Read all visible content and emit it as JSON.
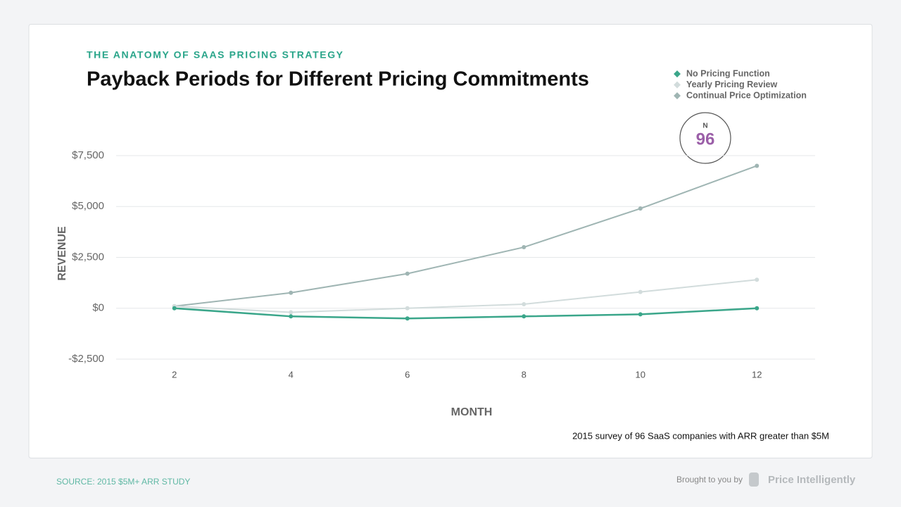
{
  "chart_data": {
    "type": "line",
    "eyebrow": "THE ANATOMY OF SAAS PRICING STRATEGY",
    "title": "Payback Periods for Different Pricing Commitments",
    "ylabel": "REVENUE",
    "xlabel": "MONTH",
    "note": "2015 survey of 96 SaaS companies with ARR greater than $5M",
    "annotation": {
      "label": "N",
      "value": 96
    },
    "legend": "top-right",
    "grid": true,
    "x": [
      2,
      4,
      6,
      8,
      10,
      12
    ],
    "xlim": [
      1,
      13
    ],
    "xticks": [
      2,
      4,
      6,
      8,
      10,
      12
    ],
    "ylim": [
      -2500,
      7500
    ],
    "yticks": [
      {
        "value": -2500,
        "label": "-$2,500"
      },
      {
        "value": 0,
        "label": "$0"
      },
      {
        "value": 2500,
        "label": "$2,500"
      },
      {
        "value": 5000,
        "label": "$5,000"
      },
      {
        "value": 7500,
        "label": "$7,500"
      }
    ],
    "series": [
      {
        "name": "No Pricing Function",
        "color": "#3aa68a",
        "values": [
          0,
          -400,
          -500,
          -400,
          -300,
          0
        ]
      },
      {
        "name": "Yearly Pricing Review",
        "color": "#d2dcdc",
        "values": [
          100,
          -200,
          0,
          200,
          800,
          1400
        ]
      },
      {
        "name": "Continual Price Optimization",
        "color": "#9fb5b3",
        "values": [
          100,
          760,
          1700,
          3000,
          4900,
          7000
        ]
      }
    ]
  },
  "footer": {
    "source": "SOURCE: 2015 $5M+ ARR STUDY",
    "credit": "Brought to you by",
    "brand": "Price Intelligently"
  }
}
